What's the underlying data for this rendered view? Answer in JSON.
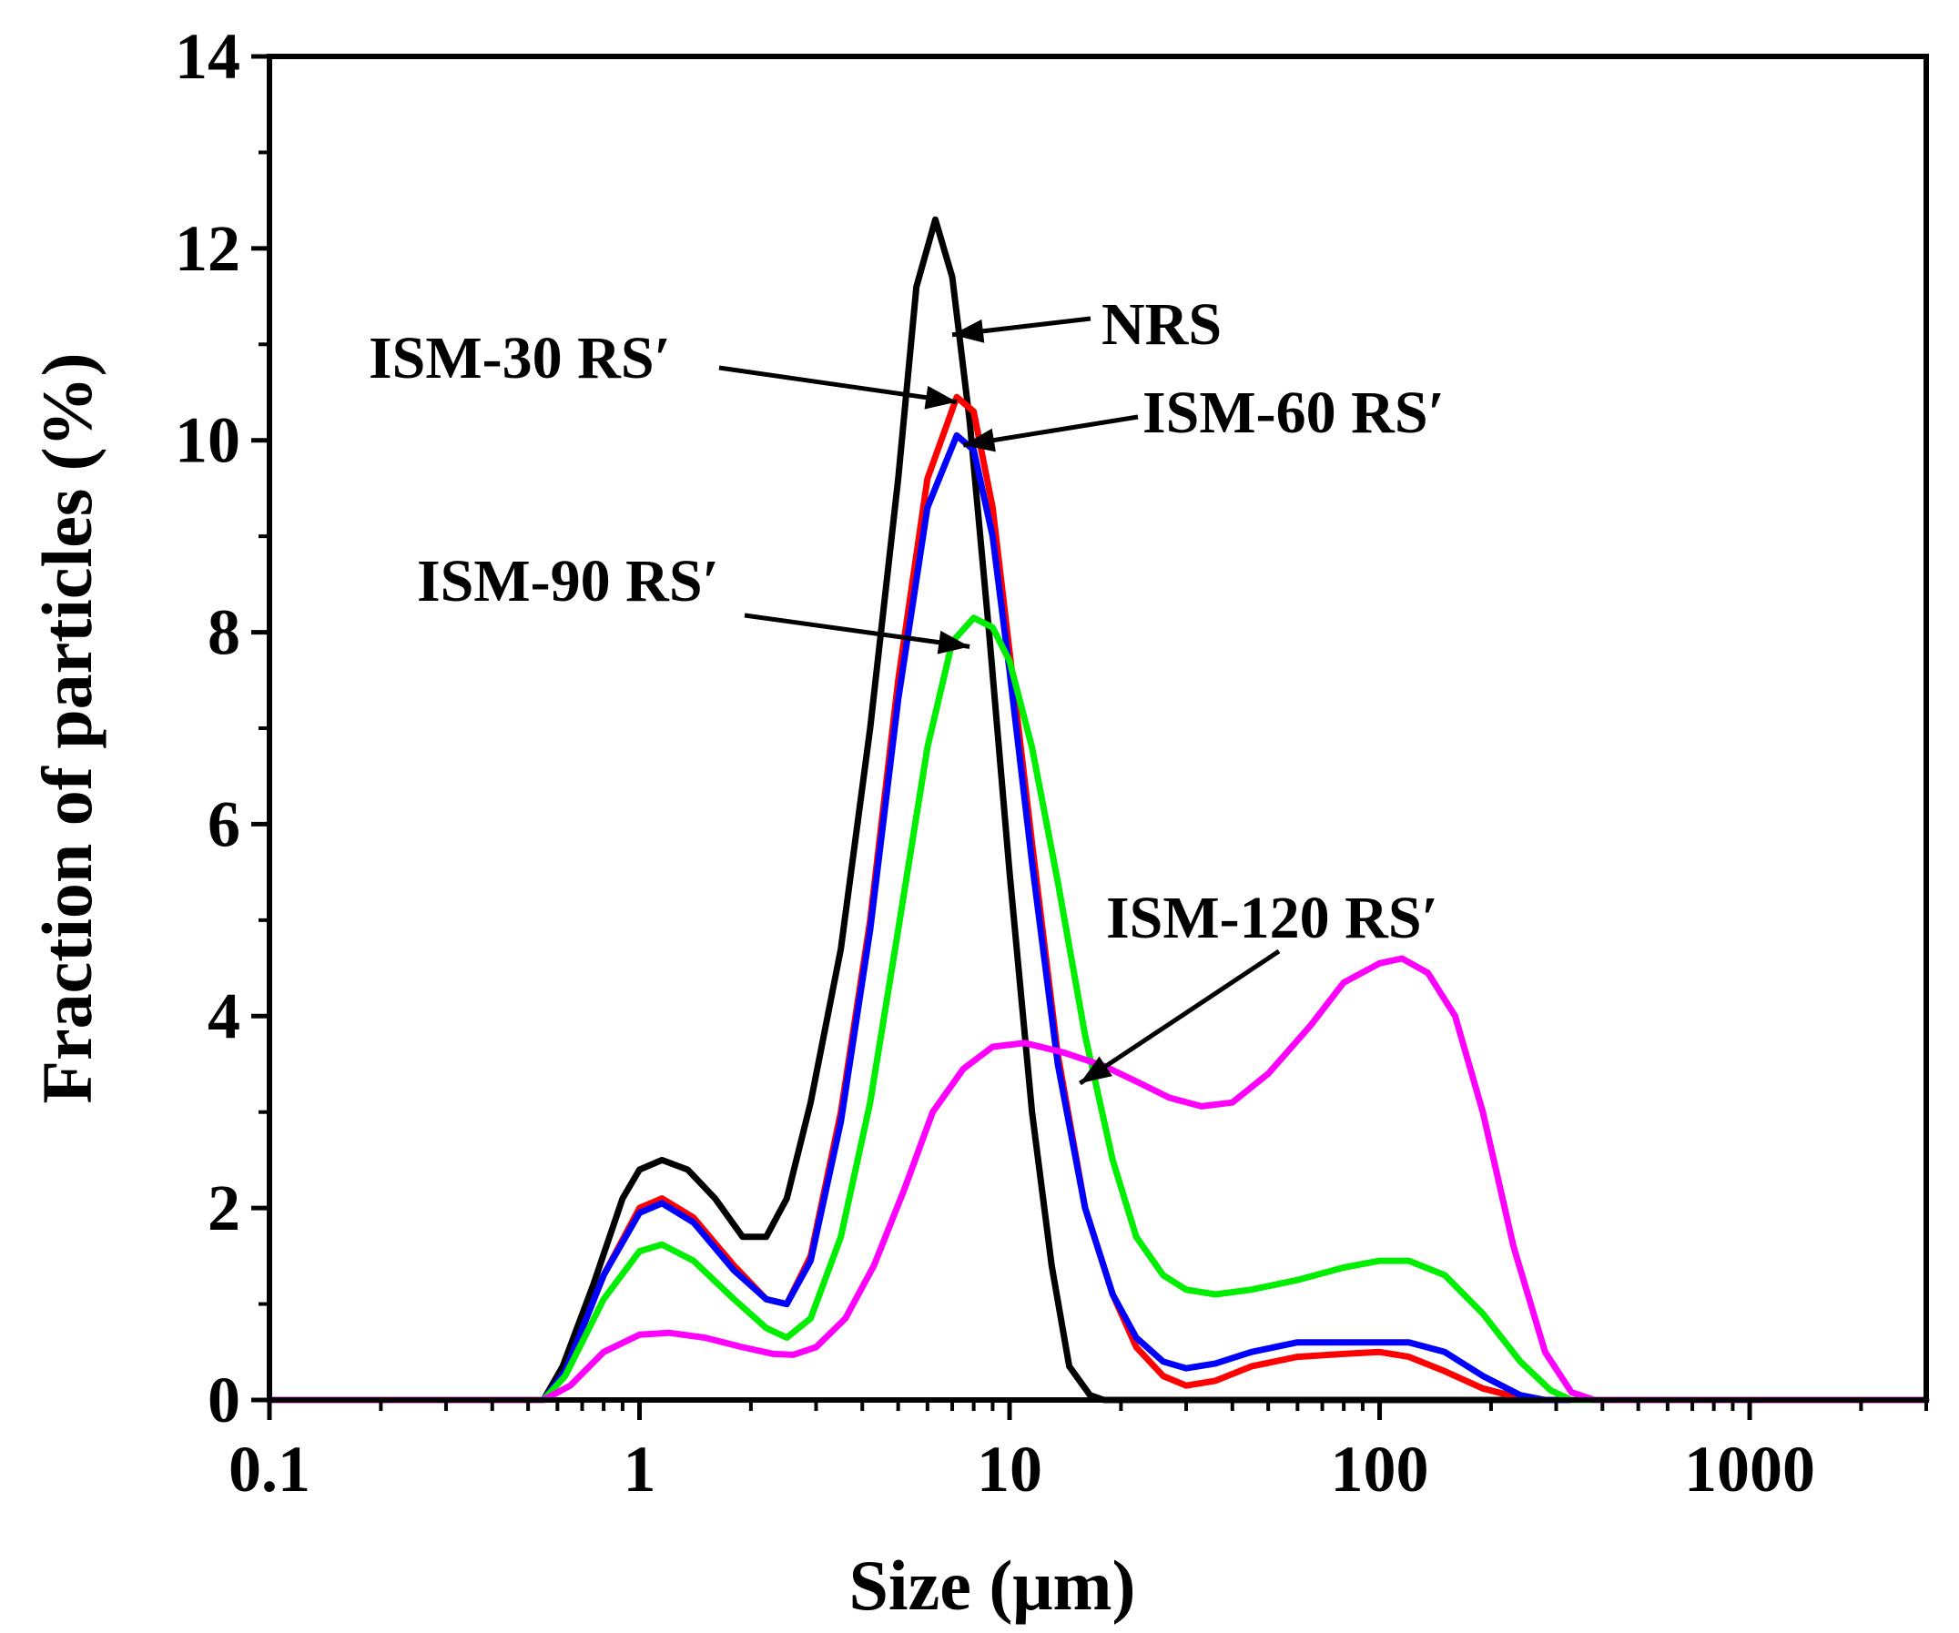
{
  "chart_data": {
    "type": "line",
    "title": "",
    "xlabel": "Size (μm)",
    "ylabel": "Fraction of particles (%)",
    "xscale": "log",
    "xlim": [
      0.1,
      3000
    ],
    "ylim": [
      0,
      14
    ],
    "xticks": [
      0.1,
      1,
      10,
      100,
      1000
    ],
    "xtick_labels": [
      "0.1",
      "1",
      "10",
      "100",
      "1000"
    ],
    "yticks": [
      0,
      2,
      4,
      6,
      8,
      10,
      12,
      14
    ],
    "ytick_labels": [
      "0",
      "2",
      "4",
      "6",
      "8",
      "10",
      "12",
      "14"
    ],
    "grid": false,
    "series": [
      {
        "name": "NRS",
        "color": "#000000",
        "points": [
          [
            0.1,
            0
          ],
          [
            0.55,
            0
          ],
          [
            0.62,
            0.35
          ],
          [
            0.75,
            1.2
          ],
          [
            0.9,
            2.1
          ],
          [
            1.0,
            2.4
          ],
          [
            1.15,
            2.5
          ],
          [
            1.35,
            2.4
          ],
          [
            1.6,
            2.1
          ],
          [
            1.9,
            1.7
          ],
          [
            2.2,
            1.7
          ],
          [
            2.5,
            2.1
          ],
          [
            2.9,
            3.1
          ],
          [
            3.5,
            4.7
          ],
          [
            4.2,
            7.0
          ],
          [
            5.0,
            9.6
          ],
          [
            5.6,
            11.6
          ],
          [
            6.3,
            12.3
          ],
          [
            7.0,
            11.7
          ],
          [
            7.8,
            10.2
          ],
          [
            8.8,
            8.0
          ],
          [
            10.0,
            5.5
          ],
          [
            11.5,
            3.0
          ],
          [
            13.0,
            1.4
          ],
          [
            14.5,
            0.35
          ],
          [
            16.5,
            0.05
          ],
          [
            18.0,
            0
          ],
          [
            3000,
            0
          ]
        ]
      },
      {
        "name": "ISM-30 RS′",
        "color": "#ff0000",
        "points": [
          [
            0.1,
            0
          ],
          [
            0.55,
            0
          ],
          [
            0.63,
            0.3
          ],
          [
            0.8,
            1.3
          ],
          [
            1.0,
            2.0
          ],
          [
            1.15,
            2.1
          ],
          [
            1.4,
            1.9
          ],
          [
            1.8,
            1.4
          ],
          [
            2.2,
            1.05
          ],
          [
            2.5,
            1.0
          ],
          [
            2.9,
            1.5
          ],
          [
            3.5,
            3.0
          ],
          [
            4.2,
            5.0
          ],
          [
            5.0,
            7.5
          ],
          [
            6.0,
            9.6
          ],
          [
            7.2,
            10.45
          ],
          [
            8.0,
            10.3
          ],
          [
            9.0,
            9.3
          ],
          [
            10.0,
            7.8
          ],
          [
            11.5,
            5.8
          ],
          [
            13.5,
            3.6
          ],
          [
            16.0,
            2.0
          ],
          [
            19.0,
            1.1
          ],
          [
            22.0,
            0.55
          ],
          [
            26.0,
            0.25
          ],
          [
            30.0,
            0.15
          ],
          [
            36.0,
            0.2
          ],
          [
            45.0,
            0.35
          ],
          [
            60.0,
            0.45
          ],
          [
            80.0,
            0.48
          ],
          [
            100.0,
            0.5
          ],
          [
            120.0,
            0.45
          ],
          [
            150.0,
            0.3
          ],
          [
            190.0,
            0.12
          ],
          [
            240.0,
            0.02
          ],
          [
            280.0,
            0
          ],
          [
            3000,
            0
          ]
        ]
      },
      {
        "name": "ISM-60 RS′",
        "color": "#0000ff",
        "points": [
          [
            0.1,
            0
          ],
          [
            0.55,
            0
          ],
          [
            0.63,
            0.3
          ],
          [
            0.8,
            1.3
          ],
          [
            1.0,
            1.95
          ],
          [
            1.15,
            2.05
          ],
          [
            1.4,
            1.85
          ],
          [
            1.8,
            1.35
          ],
          [
            2.2,
            1.05
          ],
          [
            2.5,
            1.0
          ],
          [
            2.9,
            1.45
          ],
          [
            3.5,
            2.9
          ],
          [
            4.2,
            4.9
          ],
          [
            5.0,
            7.3
          ],
          [
            6.0,
            9.3
          ],
          [
            7.2,
            10.05
          ],
          [
            8.0,
            9.9
          ],
          [
            9.0,
            9.0
          ],
          [
            10.0,
            7.6
          ],
          [
            11.5,
            5.6
          ],
          [
            13.5,
            3.5
          ],
          [
            16.0,
            2.0
          ],
          [
            19.0,
            1.1
          ],
          [
            22.0,
            0.65
          ],
          [
            26.0,
            0.4
          ],
          [
            30.0,
            0.33
          ],
          [
            36.0,
            0.38
          ],
          [
            45.0,
            0.5
          ],
          [
            60.0,
            0.6
          ],
          [
            80.0,
            0.6
          ],
          [
            100.0,
            0.6
          ],
          [
            120.0,
            0.6
          ],
          [
            150.0,
            0.5
          ],
          [
            190.0,
            0.25
          ],
          [
            240.0,
            0.05
          ],
          [
            280.0,
            0
          ],
          [
            3000,
            0
          ]
        ]
      },
      {
        "name": "ISM-90 RS′",
        "color": "#00ee00",
        "points": [
          [
            0.1,
            0
          ],
          [
            0.55,
            0
          ],
          [
            0.63,
            0.25
          ],
          [
            0.8,
            1.05
          ],
          [
            1.0,
            1.55
          ],
          [
            1.15,
            1.62
          ],
          [
            1.4,
            1.45
          ],
          [
            1.8,
            1.05
          ],
          [
            2.2,
            0.75
          ],
          [
            2.5,
            0.65
          ],
          [
            2.9,
            0.85
          ],
          [
            3.5,
            1.7
          ],
          [
            4.2,
            3.1
          ],
          [
            5.0,
            4.9
          ],
          [
            6.0,
            6.8
          ],
          [
            7.0,
            7.9
          ],
          [
            8.0,
            8.15
          ],
          [
            9.0,
            8.05
          ],
          [
            10.0,
            7.7
          ],
          [
            11.5,
            6.8
          ],
          [
            13.5,
            5.4
          ],
          [
            16.0,
            3.8
          ],
          [
            19.0,
            2.5
          ],
          [
            22.0,
            1.7
          ],
          [
            26.0,
            1.3
          ],
          [
            30.0,
            1.15
          ],
          [
            36.0,
            1.1
          ],
          [
            45.0,
            1.15
          ],
          [
            60.0,
            1.25
          ],
          [
            80.0,
            1.38
          ],
          [
            100.0,
            1.45
          ],
          [
            120.0,
            1.45
          ],
          [
            150.0,
            1.3
          ],
          [
            190.0,
            0.9
          ],
          [
            240.0,
            0.4
          ],
          [
            290.0,
            0.1
          ],
          [
            330.0,
            0
          ],
          [
            3000,
            0
          ]
        ]
      },
      {
        "name": "ISM-120 RS′",
        "color": "#ff00ff",
        "points": [
          [
            0.1,
            0
          ],
          [
            0.55,
            0
          ],
          [
            0.65,
            0.15
          ],
          [
            0.8,
            0.5
          ],
          [
            1.0,
            0.68
          ],
          [
            1.2,
            0.7
          ],
          [
            1.5,
            0.65
          ],
          [
            1.9,
            0.55
          ],
          [
            2.3,
            0.48
          ],
          [
            2.6,
            0.47
          ],
          [
            3.0,
            0.55
          ],
          [
            3.6,
            0.85
          ],
          [
            4.3,
            1.4
          ],
          [
            5.2,
            2.2
          ],
          [
            6.2,
            3.0
          ],
          [
            7.5,
            3.45
          ],
          [
            9.0,
            3.68
          ],
          [
            11.0,
            3.72
          ],
          [
            14.0,
            3.62
          ],
          [
            18.0,
            3.48
          ],
          [
            22.0,
            3.32
          ],
          [
            27.0,
            3.15
          ],
          [
            33.0,
            3.06
          ],
          [
            40.0,
            3.1
          ],
          [
            50.0,
            3.4
          ],
          [
            65.0,
            3.9
          ],
          [
            80.0,
            4.35
          ],
          [
            100.0,
            4.55
          ],
          [
            115.0,
            4.6
          ],
          [
            135.0,
            4.45
          ],
          [
            160.0,
            4.0
          ],
          [
            190.0,
            3.0
          ],
          [
            230.0,
            1.6
          ],
          [
            280.0,
            0.5
          ],
          [
            330.0,
            0.08
          ],
          [
            380.0,
            0
          ],
          [
            3000,
            0
          ]
        ]
      }
    ],
    "annotations": [
      {
        "text": "NRS",
        "target": [
          7.0,
          11.1
        ]
      },
      {
        "text": "ISM-30 RS′",
        "target": [
          7.2,
          10.4
        ]
      },
      {
        "text": "ISM-60 RS′",
        "target": [
          7.5,
          9.95
        ]
      },
      {
        "text": "ISM-90 RS′",
        "target": [
          7.8,
          7.85
        ]
      },
      {
        "text": "ISM-120 RS′",
        "target": [
          15.5,
          3.3
        ]
      }
    ]
  }
}
